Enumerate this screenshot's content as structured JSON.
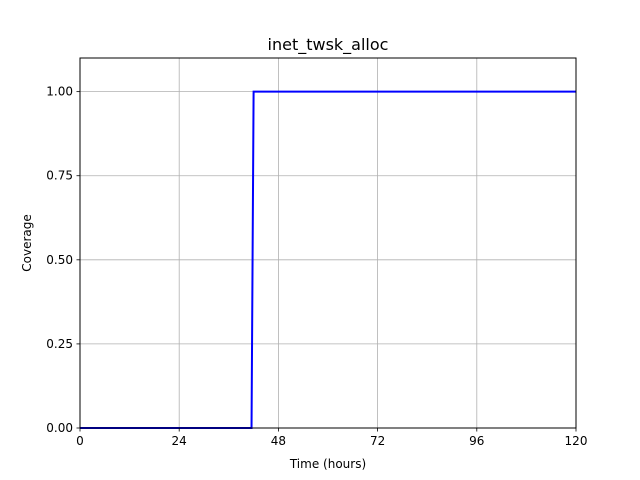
{
  "chart_data": {
    "type": "line",
    "title": "inet_twsk_alloc",
    "xlabel": "Time (hours)",
    "ylabel": "Coverage",
    "xlim": [
      0,
      120
    ],
    "ylim": [
      0,
      1.1
    ],
    "xticks": [
      0,
      24,
      48,
      72,
      96,
      120
    ],
    "xtick_labels": [
      "0",
      "24",
      "48",
      "72",
      "96",
      "120"
    ],
    "yticks": [
      0,
      0.25,
      0.5,
      0.75,
      1.0
    ],
    "ytick_labels": [
      "0.00",
      "0.25",
      "0.50",
      "0.75",
      "1.00"
    ],
    "grid": true,
    "series": [
      {
        "color": "#0000ff",
        "x": [
          0,
          41.5,
          42,
          120
        ],
        "y": [
          0,
          0,
          1.0,
          1.0
        ]
      }
    ]
  }
}
